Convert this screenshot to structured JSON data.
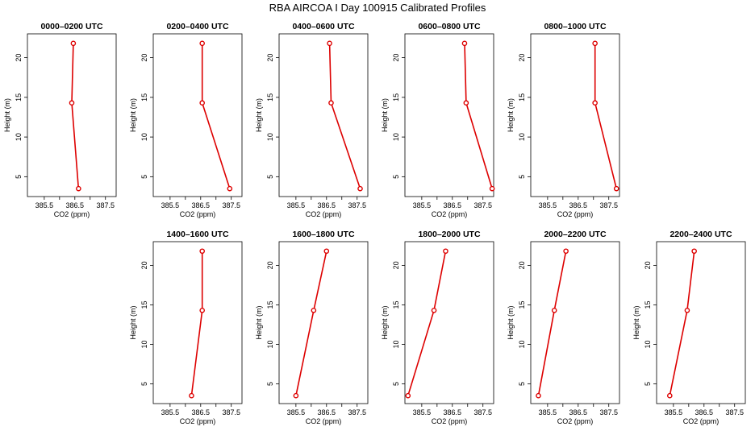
{
  "figure": {
    "title": "RBA AIRCOA I  Day 100915  Calibrated Profiles"
  },
  "colors": {
    "series": "#dd0000",
    "axes": "#000000",
    "background": "#ffffff"
  },
  "chart_data": [
    {
      "type": "line",
      "title": "0000–0200 UTC",
      "xlabel": "CO2 (ppm)",
      "ylabel": "Height (m)",
      "xlim": [
        384.95,
        387.85
      ],
      "ylim": [
        2.5,
        23.0
      ],
      "xticks": [
        "385.5",
        "386.5",
        "387.5"
      ],
      "yticks": [
        "5",
        "10",
        "15",
        "20"
      ],
      "x": [
        386.62,
        386.4,
        386.45
      ],
      "y": [
        3.5,
        14.3,
        21.8
      ]
    },
    {
      "type": "line",
      "title": "0200–0400 UTC",
      "xlabel": "CO2 (ppm)",
      "ylabel": "Height (m)",
      "xlim": [
        384.95,
        387.85
      ],
      "ylim": [
        2.5,
        23.0
      ],
      "xticks": [
        "385.5",
        "386.5",
        "387.5"
      ],
      "yticks": [
        "5",
        "10",
        "15",
        "20"
      ],
      "x": [
        387.45,
        386.55,
        386.55
      ],
      "y": [
        3.5,
        14.3,
        21.8
      ]
    },
    {
      "type": "line",
      "title": "0400–0600 UTC",
      "xlabel": "CO2 (ppm)",
      "ylabel": "Height (m)",
      "xlim": [
        384.95,
        387.85
      ],
      "ylim": [
        2.5,
        23.0
      ],
      "xticks": [
        "385.5",
        "386.5",
        "387.5"
      ],
      "yticks": [
        "5",
        "10",
        "15",
        "20"
      ],
      "x": [
        387.6,
        386.65,
        386.6
      ],
      "y": [
        3.5,
        14.3,
        21.8
      ]
    },
    {
      "type": "line",
      "title": "0600–0800 UTC",
      "xlabel": "CO2 (ppm)",
      "ylabel": "Height (m)",
      "xlim": [
        384.95,
        387.85
      ],
      "ylim": [
        2.5,
        23.0
      ],
      "xticks": [
        "385.5",
        "386.5",
        "387.5"
      ],
      "yticks": [
        "5",
        "10",
        "15",
        "20"
      ],
      "x": [
        387.8,
        386.95,
        386.9
      ],
      "y": [
        3.5,
        14.3,
        21.8
      ]
    },
    {
      "type": "line",
      "title": "0800–1000 UTC",
      "xlabel": "CO2 (ppm)",
      "ylabel": "Height (m)",
      "xlim": [
        384.95,
        387.85
      ],
      "ylim": [
        2.5,
        23.0
      ],
      "xticks": [
        "385.5",
        "386.5",
        "387.5"
      ],
      "yticks": [
        "5",
        "10",
        "15",
        "20"
      ],
      "x": [
        387.75,
        387.05,
        387.05
      ],
      "y": [
        3.5,
        14.3,
        21.8
      ]
    },
    {
      "type": "line",
      "title": "1400–1600 UTC",
      "xlabel": "CO2 (ppm)",
      "ylabel": "Height (m)",
      "xlim": [
        384.95,
        387.85
      ],
      "ylim": [
        2.5,
        23.0
      ],
      "xticks": [
        "385.5",
        "386.5",
        "387.5"
      ],
      "yticks": [
        "5",
        "10",
        "15",
        "20"
      ],
      "x": [
        386.2,
        386.55,
        386.55
      ],
      "y": [
        3.5,
        14.3,
        21.8
      ]
    },
    {
      "type": "line",
      "title": "1600–1800 UTC",
      "xlabel": "CO2 (ppm)",
      "ylabel": "Height (m)",
      "xlim": [
        384.95,
        387.85
      ],
      "ylim": [
        2.5,
        23.0
      ],
      "xticks": [
        "385.5",
        "386.5",
        "387.5"
      ],
      "yticks": [
        "5",
        "10",
        "15",
        "20"
      ],
      "x": [
        385.5,
        386.08,
        386.5
      ],
      "y": [
        3.5,
        14.3,
        21.8
      ]
    },
    {
      "type": "line",
      "title": "1800–2000 UTC",
      "xlabel": "CO2 (ppm)",
      "ylabel": "Height (m)",
      "xlim": [
        384.95,
        387.85
      ],
      "ylim": [
        2.5,
        23.0
      ],
      "xticks": [
        "385.5",
        "386.5",
        "387.5"
      ],
      "yticks": [
        "5",
        "10",
        "15",
        "20"
      ],
      "x": [
        385.05,
        385.9,
        386.28
      ],
      "y": [
        3.5,
        14.3,
        21.8
      ]
    },
    {
      "type": "line",
      "title": "2000–2200 UTC",
      "xlabel": "CO2 (ppm)",
      "ylabel": "Height (m)",
      "xlim": [
        384.95,
        387.85
      ],
      "ylim": [
        2.5,
        23.0
      ],
      "xticks": [
        "385.5",
        "386.5",
        "387.5"
      ],
      "yticks": [
        "5",
        "10",
        "15",
        "20"
      ],
      "x": [
        385.2,
        385.72,
        386.1
      ],
      "y": [
        3.5,
        14.3,
        21.8
      ]
    },
    {
      "type": "line",
      "title": "2200–2400 UTC",
      "xlabel": "CO2 (ppm)",
      "ylabel": "Height (m)",
      "xlim": [
        384.95,
        387.85
      ],
      "ylim": [
        2.5,
        23.0
      ],
      "xticks": [
        "385.5",
        "386.5",
        "387.5"
      ],
      "yticks": [
        "5",
        "10",
        "15",
        "20"
      ],
      "x": [
        385.38,
        385.95,
        386.18
      ],
      "y": [
        3.5,
        14.3,
        21.8
      ]
    }
  ]
}
